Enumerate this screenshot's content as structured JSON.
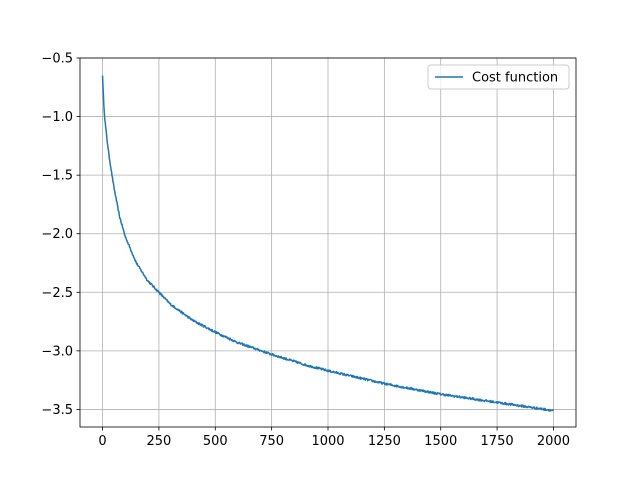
{
  "chart_data": {
    "type": "line",
    "title": "",
    "xlabel": "",
    "ylabel": "",
    "xlim": [
      -100,
      2100
    ],
    "ylim": [
      -3.65,
      -0.5
    ],
    "xticks": [
      0,
      250,
      500,
      750,
      1000,
      1250,
      1500,
      1750,
      2000
    ],
    "xtick_labels": [
      "0",
      "250",
      "500",
      "750",
      "1000",
      "1250",
      "1500",
      "1750",
      "2000"
    ],
    "yticks": [
      -3.5,
      -3.0,
      -2.5,
      -2.0,
      -1.5,
      -1.0,
      -0.5
    ],
    "ytick_labels": [
      "−3.5",
      "−3.0",
      "−2.5",
      "−2.0",
      "−1.5",
      "−1.0",
      "−0.5"
    ],
    "grid": true,
    "legend_position": "top-right",
    "series": [
      {
        "name": "Cost function",
        "color": "#1f77b4",
        "x": [
          0,
          5,
          10,
          20,
          30,
          50,
          75,
          100,
          150,
          200,
          250,
          300,
          400,
          500,
          600,
          750,
          900,
          1000,
          1250,
          1500,
          1750,
          2000
        ],
        "y": [
          -0.65,
          -0.88,
          -1.02,
          -1.2,
          -1.35,
          -1.6,
          -1.85,
          -2.02,
          -2.25,
          -2.4,
          -2.5,
          -2.6,
          -2.74,
          -2.84,
          -2.93,
          -3.03,
          -3.12,
          -3.17,
          -3.28,
          -3.37,
          -3.44,
          -3.51
        ]
      }
    ]
  }
}
